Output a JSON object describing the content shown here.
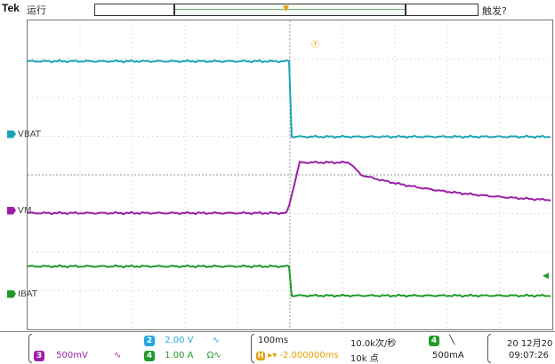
{
  "header": {
    "brand": "Tek",
    "run_status": "运行",
    "trigger_status": "触发?"
  },
  "channels": [
    {
      "label": "VBAT",
      "color": "#1aa5b5"
    },
    {
      "label": "VM",
      "color": "#9b1fa8"
    },
    {
      "label": "IBAT",
      "color": "#1f9a2a"
    }
  ],
  "footer": {
    "ch3": {
      "num": "3",
      "scale": "500mV",
      "color": "#9b1fa8",
      "symbol": "∿"
    },
    "ch2": {
      "num": "2",
      "scale": "2.00 V",
      "color": "#22a7e0",
      "symbol": "∿"
    },
    "ch4": {
      "num": "4",
      "scale": "1.00 A",
      "color": "#1f9a2a",
      "symbol": "Ω∿"
    },
    "timebase": "100ms",
    "trigger_delay": "▸▾ -2.000000ms",
    "sample_rate": "10.0k次/秒",
    "record_length": "10k 点",
    "trig_source": "4",
    "trig_slope": "╲",
    "trig_level": "500mA",
    "date": "20 12月20",
    "time": "09:07:26"
  }
}
